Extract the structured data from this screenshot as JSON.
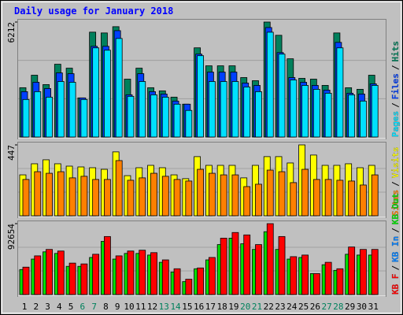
{
  "title": "Daily usage for January 2018",
  "legend_separator": "/",
  "chart_data": [
    {
      "type": "bar",
      "ylim": [
        0,
        6212
      ],
      "yticks": [
        6212
      ],
      "series": [
        {
          "name": "Pages",
          "color": "#00e0ff",
          "values": [
            2028,
            2451,
            2155,
            3000,
            2958,
            2028,
            4818,
            4691,
            5325,
            2198,
            3000,
            2282,
            2155,
            1775,
            1437,
            4395,
            3000,
            3000,
            3000,
            2705,
            2451,
            5663,
            4480,
            3085,
            2789,
            2578,
            2367,
            4818,
            2282,
            1944,
            2789
          ]
        },
        {
          "name": "Files",
          "color": "#0040ff",
          "values": [
            2451,
            2958,
            2620,
            3465,
            3423,
            2113,
            4902,
            4902,
            5747,
            2282,
            3423,
            2451,
            2324,
            1944,
            1775,
            4480,
            3508,
            3508,
            3508,
            2916,
            2789,
            5916,
            4564,
            3212,
            2958,
            2789,
            2536,
            5113,
            2367,
            2324,
            2874
          ]
        },
        {
          "name": "Hits",
          "color": "#00805c",
          "values": [
            2665,
            3340,
            2833,
            3933,
            3720,
            2114,
            5666,
            5623,
            5962,
            3128,
            3720,
            2665,
            2495,
            2156,
            1776,
            4820,
            3848,
            3848,
            3848,
            3213,
            3044,
            6212,
            5497,
            4228,
            3171,
            3128,
            2790,
            5623,
            2664,
            2579,
            3340
          ]
        }
      ]
    },
    {
      "type": "bar",
      "ylim": [
        0,
        447
      ],
      "yticks": [
        447
      ],
      "series": [
        {
          "name": "Sites",
          "color": "#ff8000",
          "values": [
            229,
            278,
            268,
            278,
            239,
            249,
            229,
            229,
            348,
            224,
            239,
            268,
            249,
            229,
            219,
            293,
            268,
            258,
            258,
            184,
            199,
            288,
            278,
            209,
            293,
            229,
            229,
            224,
            219,
            194,
            258
          ]
        },
        {
          "name": "Visits",
          "color": "#ffff00",
          "values": [
            258,
            328,
            353,
            328,
            313,
            308,
            303,
            293,
            403,
            253,
            303,
            318,
            303,
            258,
            234,
            373,
            318,
            318,
            318,
            239,
            318,
            373,
            373,
            333,
            447,
            383,
            318,
            318,
            328,
            303,
            318
          ]
        }
      ]
    },
    {
      "type": "bar",
      "ylim": [
        0,
        92654
      ],
      "yticks": [
        92654
      ],
      "categories": [
        "1",
        "2",
        "3",
        "4",
        "5",
        "6",
        "7",
        "8",
        "9",
        "10",
        "11",
        "12",
        "13",
        "14",
        "15",
        "16",
        "17",
        "18",
        "19",
        "20",
        "21",
        "22",
        "23",
        "24",
        "25",
        "26",
        "27",
        "28",
        "29",
        "30",
        "31"
      ],
      "category_colors": [
        "#000000",
        "#000000",
        "#000000",
        "#000000",
        "#000000",
        "#00805c",
        "#00805c",
        "#000000",
        "#000000",
        "#000000",
        "#000000",
        "#000000",
        "#00805c",
        "#00805c",
        "#000000",
        "#000000",
        "#000000",
        "#000000",
        "#000000",
        "#00805c",
        "#00805c",
        "#000000",
        "#000000",
        "#000000",
        "#000000",
        "#000000",
        "#00805c",
        "#00805c",
        "#000000",
        "#000000",
        "#000000"
      ],
      "series": [
        {
          "name": "KB F",
          "color": "#ff0000",
          "values": [
            35800,
            50544,
            58968,
            56862,
            41067,
            40014,
            52650,
            75816,
            50544,
            56862,
            57915,
            54756,
            45279,
            33696,
            20007,
            34749,
            48438,
            73710,
            81081,
            77922,
            65286,
            92654,
            75816,
            49491,
            51597,
            27378,
            42120,
            33696,
            62127,
            58968,
            58968
          ]
        },
        {
          "name": "KB In",
          "color": "#0080ff",
          "values": [
            0,
            0,
            0,
            0,
            0,
            0,
            0,
            0,
            0,
            0,
            0,
            0,
            0,
            0,
            0,
            0,
            0,
            0,
            0,
            0,
            0,
            0,
            0,
            0,
            0,
            0,
            0,
            0,
            0,
            0,
            0
          ]
        },
        {
          "name": "KB Out",
          "color": "#00e000",
          "values": [
            32643,
            46332,
            55809,
            53703,
            36855,
            36855,
            48438,
            69498,
            46332,
            53703,
            53703,
            51597,
            42120,
            29484,
            16848,
            33696,
            45279,
            65286,
            73710,
            66339,
            58968,
            82134,
            58968,
            46332,
            48438,
            27378,
            38961,
            31590,
            52650,
            51597,
            51597
          ]
        }
      ]
    }
  ]
}
